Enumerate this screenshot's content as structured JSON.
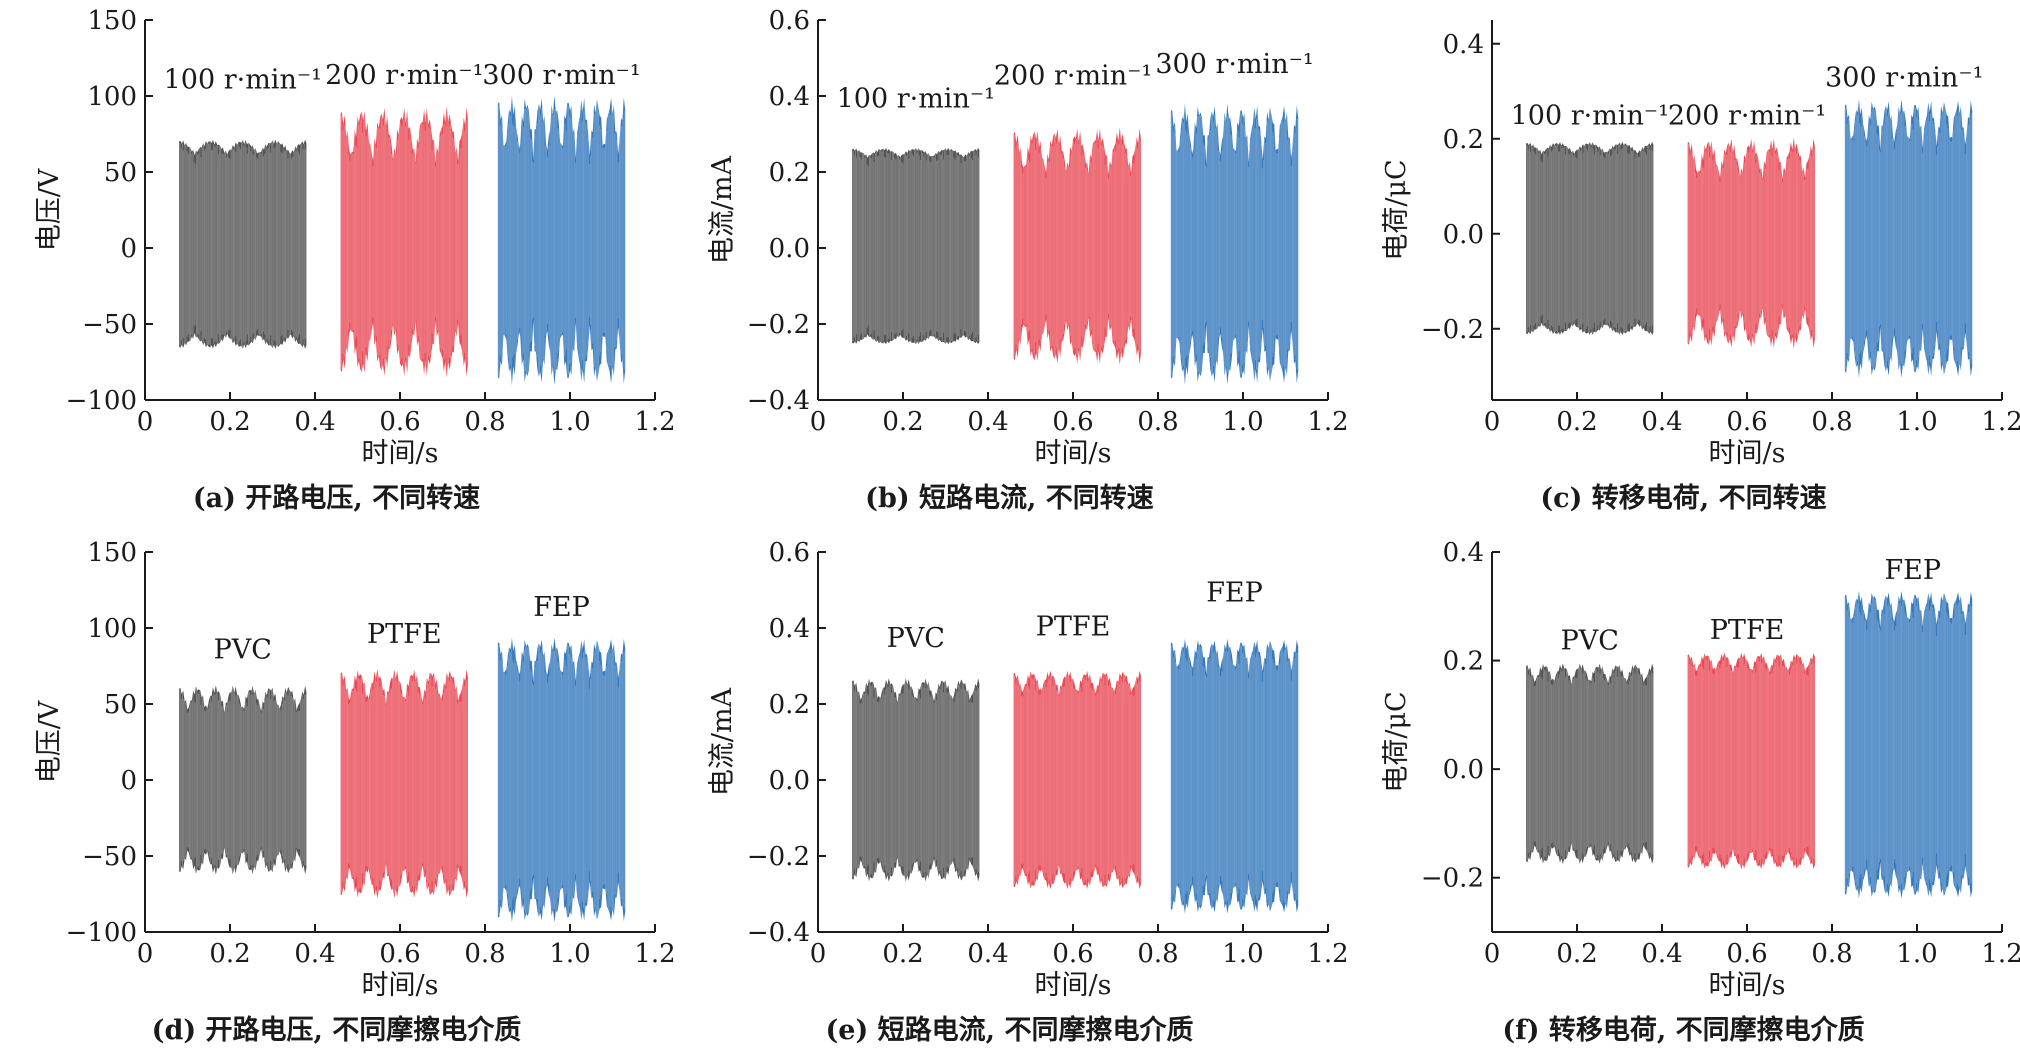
{
  "colors": {
    "dark": "#4b4b4b",
    "red": "#e8414d",
    "blue": "#2a72b8"
  },
  "chart_data": [
    {
      "id": "a",
      "type": "line",
      "caption": "(a) 开路电压, 不同转速",
      "xlabel": "时间/s",
      "ylabel": "电压/V",
      "xlim": [
        0,
        1.2
      ],
      "ylim": [
        -100,
        150
      ],
      "xticks": [
        0,
        0.2,
        0.4,
        0.6,
        0.8,
        1.0,
        1.2
      ],
      "xtick_labels": [
        "0",
        "0.2",
        "0.4",
        "0.6",
        "0.8",
        "1.0",
        "1.2"
      ],
      "yticks": [
        -100,
        -50,
        0,
        50,
        100,
        150
      ],
      "ytick_labels": [
        "−100",
        "−50",
        "0",
        "50",
        "100",
        "150"
      ],
      "grid": false,
      "series": [
        {
          "name": "100 r·min⁻¹",
          "color": "dark",
          "x_start": 0.08,
          "x_end": 0.38,
          "top": 70,
          "bottom": -65,
          "beat": 4,
          "dip": 8,
          "label_x": 0.23,
          "label_y": 105
        },
        {
          "name": "200 r·min⁻¹",
          "color": "red",
          "x_start": 0.46,
          "x_end": 0.76,
          "top": 88,
          "bottom": -80,
          "beat": 6,
          "dip": 30,
          "label_x": 0.61,
          "label_y": 108
        },
        {
          "name": "300 r·min⁻¹",
          "color": "blue",
          "x_start": 0.83,
          "x_end": 1.13,
          "top": 95,
          "bottom": -85,
          "beat": 9,
          "dip": 32,
          "label_x": 0.98,
          "label_y": 108
        }
      ]
    },
    {
      "id": "b",
      "type": "line",
      "caption": "(b) 短路电流, 不同转速",
      "xlabel": "时间/s",
      "ylabel": "电流/mA",
      "xlim": [
        0,
        1.2
      ],
      "ylim": [
        -0.4,
        0.6
      ],
      "xticks": [
        0,
        0.2,
        0.4,
        0.6,
        0.8,
        1.0,
        1.2
      ],
      "xtick_labels": [
        "0",
        "0.2",
        "0.4",
        "0.6",
        "0.8",
        "1.0",
        "1.2"
      ],
      "yticks": [
        -0.4,
        -0.2,
        0.0,
        0.2,
        0.4,
        0.6
      ],
      "ytick_labels": [
        "−0.4",
        "−0.2",
        "0.0",
        "0.2",
        "0.4",
        "0.6"
      ],
      "grid": false,
      "series": [
        {
          "name": "100 r·min⁻¹",
          "color": "dark",
          "x_start": 0.08,
          "x_end": 0.38,
          "top": 0.26,
          "bottom": -0.25,
          "beat": 4,
          "dip": 0.02,
          "label_x": 0.23,
          "label_y": 0.37
        },
        {
          "name": "200 r·min⁻¹",
          "color": "red",
          "x_start": 0.46,
          "x_end": 0.76,
          "top": 0.3,
          "bottom": -0.29,
          "beat": 6,
          "dip": 0.1,
          "label_x": 0.6,
          "label_y": 0.43
        },
        {
          "name": "300 r·min⁻¹",
          "color": "blue",
          "x_start": 0.83,
          "x_end": 1.13,
          "top": 0.36,
          "bottom": -0.34,
          "beat": 9,
          "dip": 0.12,
          "label_x": 0.98,
          "label_y": 0.46
        }
      ]
    },
    {
      "id": "c",
      "type": "line",
      "caption": "(c) 转移电荷, 不同转速",
      "xlabel": "时间/s",
      "ylabel": "电荷/μC",
      "xlim": [
        0,
        1.2
      ],
      "ylim": [
        -0.35,
        0.45
      ],
      "xticks": [
        0,
        0.2,
        0.4,
        0.6,
        0.8,
        1.0,
        1.2
      ],
      "xtick_labels": [
        "0",
        "0.2",
        "0.4",
        "0.6",
        "0.8",
        "1.0",
        "1.2"
      ],
      "yticks": [
        -0.2,
        0.0,
        0.2,
        0.4
      ],
      "ytick_labels": [
        "−0.2",
        "0.0",
        "0.2",
        "0.4"
      ],
      "grid": false,
      "series": [
        {
          "name": "100 r·min⁻¹",
          "color": "dark",
          "x_start": 0.08,
          "x_end": 0.38,
          "top": 0.19,
          "bottom": -0.21,
          "beat": 4,
          "dip": 0.02,
          "label_x": 0.23,
          "label_y": 0.23
        },
        {
          "name": "200 r·min⁻¹",
          "color": "red",
          "x_start": 0.46,
          "x_end": 0.76,
          "top": 0.19,
          "bottom": -0.23,
          "beat": 6,
          "dip": 0.07,
          "label_x": 0.6,
          "label_y": 0.23
        },
        {
          "name": "300 r·min⁻¹",
          "color": "blue",
          "x_start": 0.83,
          "x_end": 1.13,
          "top": 0.27,
          "bottom": -0.29,
          "beat": 9,
          "dip": 0.08,
          "label_x": 0.97,
          "label_y": 0.31
        }
      ]
    },
    {
      "id": "d",
      "type": "line",
      "caption": "(d) 开路电压, 不同摩擦电介质",
      "xlabel": "时间/s",
      "ylabel": "电压/V",
      "xlim": [
        0,
        1.2
      ],
      "ylim": [
        -100,
        150
      ],
      "xticks": [
        0,
        0.2,
        0.4,
        0.6,
        0.8,
        1.0,
        1.2
      ],
      "xtick_labels": [
        "0",
        "0.2",
        "0.4",
        "0.6",
        "0.8",
        "1.0",
        "1.2"
      ],
      "yticks": [
        -100,
        -50,
        0,
        50,
        100,
        150
      ],
      "ytick_labels": [
        "−100",
        "−50",
        "0",
        "50",
        "100",
        "150"
      ],
      "grid": false,
      "series": [
        {
          "name": "PVC",
          "color": "dark",
          "x_start": 0.08,
          "x_end": 0.38,
          "top": 60,
          "bottom": -60,
          "beat": 7,
          "dip": 14,
          "label_x": 0.23,
          "label_y": 80
        },
        {
          "name": "PTFE",
          "color": "red",
          "x_start": 0.46,
          "x_end": 0.76,
          "top": 70,
          "bottom": -75,
          "beat": 7,
          "dip": 18,
          "label_x": 0.61,
          "label_y": 90
        },
        {
          "name": "FEP",
          "color": "blue",
          "x_start": 0.83,
          "x_end": 1.13,
          "top": 90,
          "bottom": -90,
          "beat": 9,
          "dip": 22,
          "label_x": 0.98,
          "label_y": 108
        }
      ]
    },
    {
      "id": "e",
      "type": "line",
      "caption": "(e) 短路电流, 不同摩擦电介质",
      "xlabel": "时间/s",
      "ylabel": "电流/mA",
      "xlim": [
        0,
        1.2
      ],
      "ylim": [
        -0.4,
        0.6
      ],
      "xticks": [
        0,
        0.2,
        0.4,
        0.6,
        0.8,
        1.0,
        1.2
      ],
      "xtick_labels": [
        "0",
        "0.2",
        "0.4",
        "0.6",
        "0.8",
        "1.0",
        "1.2"
      ],
      "yticks": [
        -0.4,
        -0.2,
        0.0,
        0.2,
        0.4,
        0.6
      ],
      "ytick_labels": [
        "−0.4",
        "−0.2",
        "0.0",
        "0.2",
        "0.4",
        "0.6"
      ],
      "grid": false,
      "series": [
        {
          "name": "PVC",
          "color": "dark",
          "x_start": 0.08,
          "x_end": 0.38,
          "top": 0.26,
          "bottom": -0.26,
          "beat": 7,
          "dip": 0.05,
          "label_x": 0.23,
          "label_y": 0.35
        },
        {
          "name": "PTFE",
          "color": "red",
          "x_start": 0.46,
          "x_end": 0.76,
          "top": 0.28,
          "bottom": -0.28,
          "beat": 7,
          "dip": 0.05,
          "label_x": 0.6,
          "label_y": 0.38
        },
        {
          "name": "FEP",
          "color": "blue",
          "x_start": 0.83,
          "x_end": 1.13,
          "top": 0.36,
          "bottom": -0.34,
          "beat": 9,
          "dip": 0.07,
          "label_x": 0.98,
          "label_y": 0.47
        }
      ]
    },
    {
      "id": "f",
      "type": "line",
      "caption": "(f) 转移电荷, 不同摩擦电介质",
      "xlabel": "时间/s",
      "ylabel": "电荷/μC",
      "xlim": [
        0,
        1.2
      ],
      "ylim": [
        -0.3,
        0.4
      ],
      "xticks": [
        0,
        0.2,
        0.4,
        0.6,
        0.8,
        1.0,
        1.2
      ],
      "xtick_labels": [
        "0",
        "0.2",
        "0.4",
        "0.6",
        "0.8",
        "1.0",
        "1.2"
      ],
      "yticks": [
        -0.2,
        0.0,
        0.2,
        0.4
      ],
      "ytick_labels": [
        "−0.2",
        "0.0",
        "0.2",
        "0.4"
      ],
      "grid": false,
      "series": [
        {
          "name": "PVC",
          "color": "dark",
          "x_start": 0.08,
          "x_end": 0.38,
          "top": 0.19,
          "bottom": -0.17,
          "beat": 7,
          "dip": 0.03,
          "label_x": 0.23,
          "label_y": 0.22
        },
        {
          "name": "PTFE",
          "color": "red",
          "x_start": 0.46,
          "x_end": 0.76,
          "top": 0.21,
          "bottom": -0.18,
          "beat": 7,
          "dip": 0.03,
          "label_x": 0.6,
          "label_y": 0.24
        },
        {
          "name": "FEP",
          "color": "blue",
          "x_start": 0.83,
          "x_end": 1.13,
          "top": 0.32,
          "bottom": -0.23,
          "beat": 9,
          "dip": 0.05,
          "label_x": 0.99,
          "label_y": 0.35
        }
      ]
    }
  ]
}
